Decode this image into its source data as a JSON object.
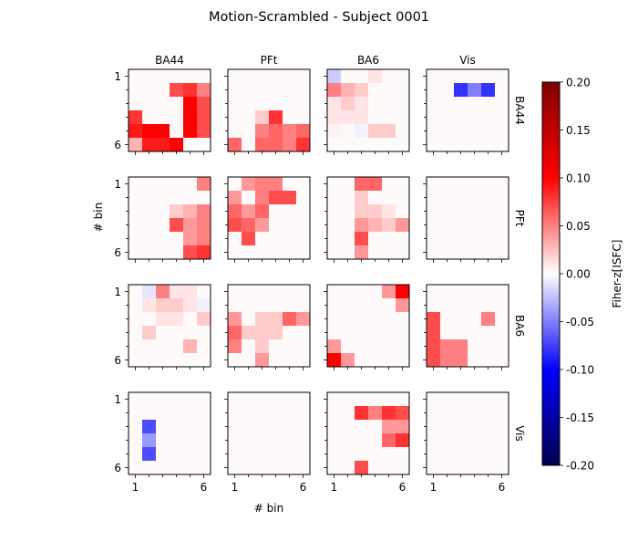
{
  "chart_data": {
    "type": "heatmap",
    "title": "Motion-Scrambled - Subject 0001",
    "xlabel": "# bin",
    "ylabel": "# bin",
    "regions": [
      "BA44",
      "PFt",
      "BA6",
      "Vis"
    ],
    "bins": 6,
    "tick_labels": [
      "1",
      "6"
    ],
    "colorbar": {
      "label": "Fiher-z[ISFC]",
      "vmin": -0.2,
      "vmax": 0.2,
      "colormap": "seismic",
      "ticks": [
        "-0.20",
        "-0.15",
        "-0.10",
        "-0.05",
        "0.00",
        "0.05",
        "0.10",
        "0.15",
        "0.20"
      ]
    },
    "matrices": [
      [
        [
          [
            0,
            0,
            0,
            0,
            0,
            0
          ],
          [
            0,
            0,
            0,
            0.07,
            0.08,
            0.05
          ],
          [
            0,
            0,
            0,
            0,
            0.1,
            0.07
          ],
          [
            0.08,
            0,
            0,
            0,
            0.1,
            0.07
          ],
          [
            0.09,
            0.1,
            0.1,
            0,
            0.1,
            0.07
          ],
          [
            0.03,
            0.09,
            0.09,
            0.1,
            0,
            0
          ]
        ],
        [
          [
            0,
            0,
            0,
            0,
            0,
            0
          ],
          [
            0,
            0,
            0,
            0,
            0,
            0
          ],
          [
            0,
            0,
            0,
            0,
            0,
            0
          ],
          [
            0,
            0,
            0.02,
            0.08,
            0,
            0
          ],
          [
            0,
            0,
            0.05,
            0.06,
            0.05,
            0.06
          ],
          [
            0.06,
            0,
            0.06,
            0.06,
            0.05,
            0.08
          ]
        ],
        [
          [
            -0.02,
            0,
            0,
            0.01,
            0,
            0
          ],
          [
            0.05,
            0.03,
            0.02,
            0,
            0,
            0
          ],
          [
            0.01,
            0.02,
            0.01,
            0,
            0,
            0
          ],
          [
            0.01,
            0.01,
            0.01,
            0,
            0,
            0
          ],
          [
            0.005,
            0,
            -0.005,
            0.02,
            0.02,
            0
          ],
          [
            0,
            0,
            0,
            0,
            0,
            0
          ]
        ],
        [
          [
            0,
            0,
            0,
            0,
            0,
            0
          ],
          [
            0,
            0,
            -0.08,
            -0.05,
            -0.08,
            0
          ],
          [
            0,
            0,
            0,
            0,
            0,
            0
          ],
          [
            0,
            0,
            0,
            0,
            0,
            0
          ],
          [
            0,
            0,
            0,
            0,
            0,
            0
          ],
          [
            0,
            0,
            0,
            0,
            0,
            0
          ]
        ]
      ],
      [
        [
          [
            0,
            0,
            0,
            0,
            0,
            0.05
          ],
          [
            0,
            0,
            0,
            0,
            0,
            0
          ],
          [
            0,
            0,
            0,
            0.02,
            0.03,
            0.05
          ],
          [
            0,
            0,
            0,
            0.07,
            0.04,
            0.05
          ],
          [
            0,
            0,
            0,
            0,
            0.04,
            0.05
          ],
          [
            0,
            0,
            0,
            0,
            0.07,
            0.08
          ]
        ],
        [
          [
            0,
            0.04,
            0.05,
            0.05,
            0,
            0
          ],
          [
            0.04,
            0,
            0.05,
            0.07,
            0.07,
            0
          ],
          [
            0.06,
            0.04,
            0.06,
            0,
            0,
            0
          ],
          [
            0.07,
            0.06,
            0.04,
            0,
            0,
            0
          ],
          [
            0,
            0.07,
            0,
            0,
            0,
            0
          ],
          [
            0,
            0,
            0,
            0,
            0,
            0
          ]
        ],
        [
          [
            0,
            0,
            0.06,
            0.06,
            0,
            0
          ],
          [
            0,
            0,
            0.02,
            0,
            0,
            0
          ],
          [
            0,
            0,
            0.02,
            0.02,
            0.01,
            0
          ],
          [
            0,
            0,
            0.04,
            0.03,
            0.02,
            0.04
          ],
          [
            0,
            0,
            0.07,
            0,
            0,
            0
          ],
          [
            0,
            0,
            0.04,
            0,
            0,
            0
          ]
        ],
        [
          [
            0,
            0,
            0,
            0,
            0,
            0
          ],
          [
            0,
            0,
            0,
            0,
            0,
            0
          ],
          [
            0,
            0,
            0,
            0,
            0,
            0
          ],
          [
            0,
            0,
            0,
            0,
            0,
            0
          ],
          [
            0,
            0,
            0,
            0,
            0,
            0
          ],
          [
            0,
            0,
            0,
            0,
            0,
            0
          ]
        ]
      ],
      [
        [
          [
            0,
            -0.01,
            0.05,
            0.01,
            0.01,
            0
          ],
          [
            0,
            0.01,
            0.02,
            0.02,
            0.01,
            -0.005
          ],
          [
            0,
            0,
            0.01,
            0.01,
            0,
            0.02
          ],
          [
            0,
            0.02,
            0,
            0,
            0,
            0
          ],
          [
            0,
            0,
            0,
            0,
            0.03,
            0
          ],
          [
            0,
            0,
            0,
            0,
            0,
            0
          ]
        ],
        [
          [
            0,
            0,
            0,
            0,
            0,
            0
          ],
          [
            0,
            0,
            0,
            0,
            0,
            0
          ],
          [
            0.04,
            0,
            0.02,
            0.02,
            0.06,
            0.04
          ],
          [
            0.06,
            0.02,
            0.02,
            0.02,
            0,
            0
          ],
          [
            0.05,
            0,
            0.02,
            0,
            0,
            0
          ],
          [
            0,
            0,
            0.04,
            0,
            0,
            0
          ]
        ],
        [
          [
            0,
            0,
            0,
            0,
            0.04,
            0.1
          ],
          [
            0,
            0,
            0,
            0,
            0,
            0.04
          ],
          [
            0,
            0,
            0,
            0,
            0,
            0
          ],
          [
            0,
            0,
            0,
            0,
            0,
            0
          ],
          [
            0.04,
            0,
            0,
            0,
            0,
            0
          ],
          [
            0.1,
            0.04,
            0,
            0,
            0,
            0
          ]
        ],
        [
          [
            0,
            0,
            0,
            0,
            0,
            0
          ],
          [
            0,
            0,
            0,
            0,
            0,
            0
          ],
          [
            0.07,
            0,
            0,
            0,
            0.05,
            0
          ],
          [
            0.07,
            0,
            0,
            0,
            0,
            0
          ],
          [
            0.07,
            0.05,
            0.05,
            0,
            0,
            0
          ],
          [
            0.07,
            0.05,
            0.05,
            0,
            0,
            0
          ]
        ]
      ],
      [
        [
          [
            0,
            0,
            0,
            0,
            0,
            0
          ],
          [
            0,
            0,
            0,
            0,
            0,
            0
          ],
          [
            0,
            -0.07,
            0,
            0,
            0,
            0
          ],
          [
            0,
            -0.04,
            0,
            0,
            0,
            0
          ],
          [
            0,
            -0.07,
            0,
            0,
            0,
            0
          ],
          [
            0,
            0,
            0,
            0,
            0,
            0
          ]
        ],
        [
          [
            0,
            0,
            0,
            0,
            0,
            0
          ],
          [
            0,
            0,
            0,
            0,
            0,
            0
          ],
          [
            0,
            0,
            0,
            0,
            0,
            0
          ],
          [
            0,
            0,
            0,
            0,
            0,
            0
          ],
          [
            0,
            0,
            0,
            0,
            0,
            0
          ],
          [
            0,
            0,
            0,
            0,
            0,
            0
          ]
        ],
        [
          [
            0,
            0,
            0,
            0,
            0,
            0
          ],
          [
            0,
            0,
            0.08,
            0.05,
            0.08,
            0.07
          ],
          [
            0,
            0,
            0,
            0,
            0.04,
            0.04
          ],
          [
            0,
            0,
            0,
            0,
            0.06,
            0.08
          ],
          [
            0,
            0,
            0,
            0,
            0,
            0
          ],
          [
            0,
            0,
            0.07,
            0,
            0,
            0
          ]
        ],
        [
          [
            0,
            0,
            0,
            0,
            0,
            0
          ],
          [
            0,
            0,
            0,
            0,
            0,
            0
          ],
          [
            0,
            0,
            0,
            0,
            0,
            0
          ],
          [
            0,
            0,
            0,
            0,
            0,
            0
          ],
          [
            0,
            0,
            0,
            0,
            0,
            0
          ],
          [
            0,
            0,
            0,
            0,
            0,
            0
          ]
        ]
      ]
    ]
  }
}
